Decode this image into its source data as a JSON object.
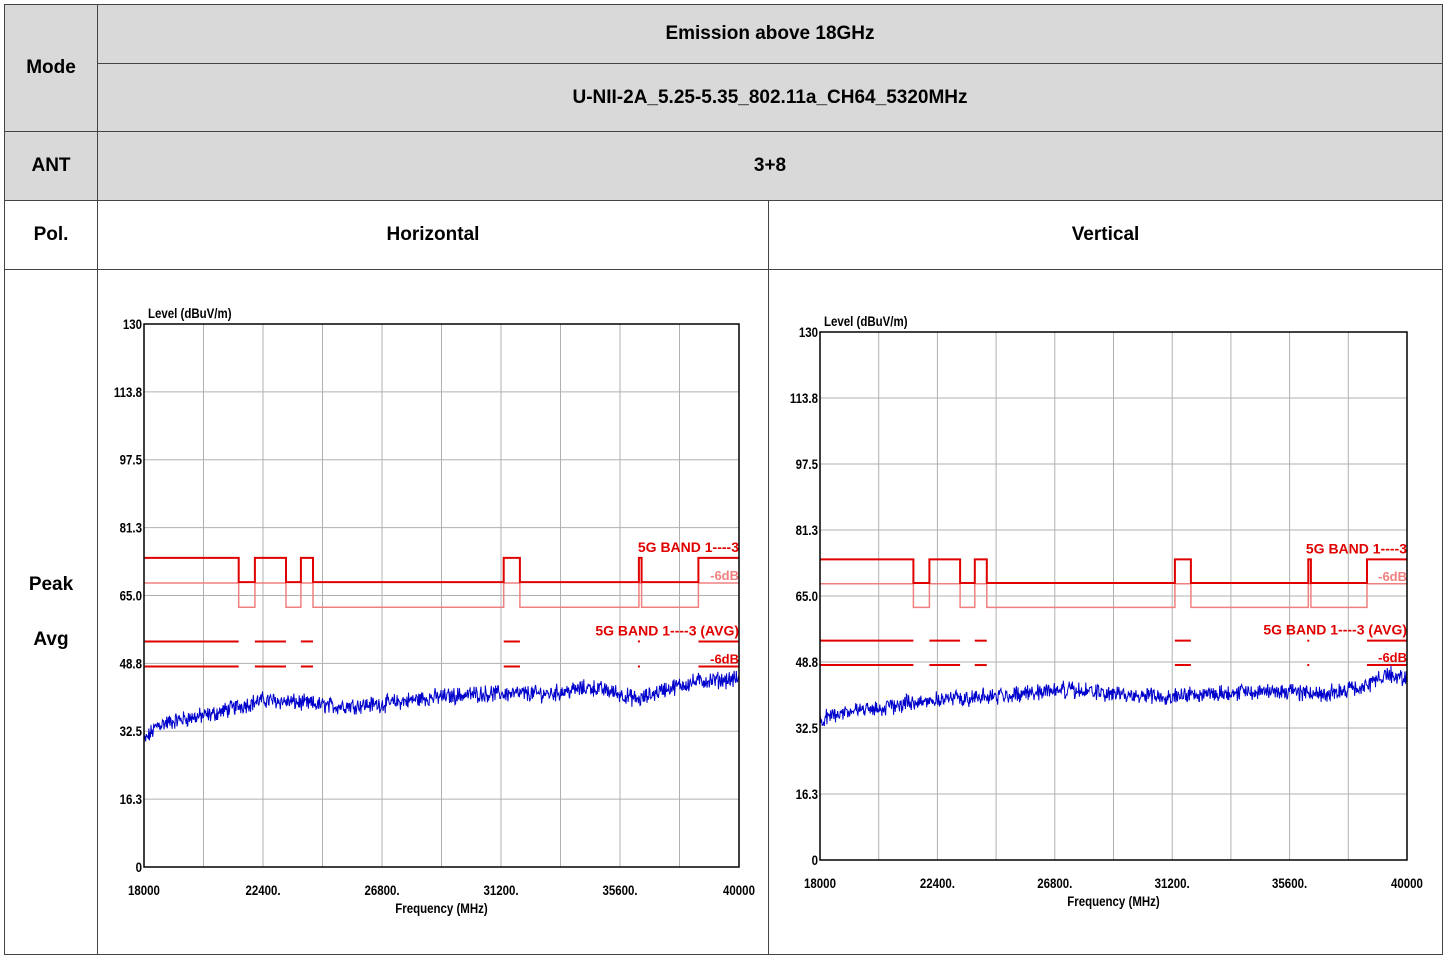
{
  "table": {
    "mode_label": "Mode",
    "emission_title": "Emission above 18GHz",
    "channel_title": "U-NII-2A_5.25-5.35_802.11a_CH64_5320MHz",
    "ant_label": "ANT",
    "ant_value": "3+8",
    "pol_label": "Pol.",
    "pol_h": "Horizontal",
    "pol_v": "Vertical",
    "row_label_peak": "Peak",
    "row_label_avg": "Avg"
  },
  "chart_data": [
    {
      "type": "line",
      "title": "",
      "ylabel": "Level (dBuV/m)",
      "xlabel": "Frequency (MHz)",
      "xlim": [
        18000,
        40000
      ],
      "ylim": [
        0,
        130
      ],
      "x_ticks": [
        "18000",
        "22400.",
        "26800.",
        "31200.",
        "35600.",
        "40000"
      ],
      "y_ticks": [
        "130",
        "113.8",
        "97.5",
        "81.3",
        "65.0",
        "48.8",
        "32.5",
        "16.3",
        "0"
      ],
      "grid": true,
      "limit_labels": [
        "5G BAND 1----3",
        "-6dB",
        "5G BAND 1----3 (AVG)",
        "-6dB"
      ],
      "colors": {
        "trace": "#0000cc",
        "limit": "#e00000",
        "limit_minus6": "#f08080"
      },
      "limit_peak_segments": [
        {
          "x": [
            18000,
            21500
          ],
          "y": 74
        },
        {
          "x": [
            21500,
            22100
          ],
          "y": 68.2
        },
        {
          "x": [
            22100,
            23250
          ],
          "y": 74
        },
        {
          "x": [
            23250,
            23800
          ],
          "y": 68.2
        },
        {
          "x": [
            23800,
            24250
          ],
          "y": 74
        },
        {
          "x": [
            24250,
            31300
          ],
          "y": 68.2
        },
        {
          "x": [
            31300,
            31900
          ],
          "y": 74
        },
        {
          "x": [
            31900,
            36300
          ],
          "y": 68.2
        },
        {
          "x": [
            36300,
            36400
          ],
          "y": 74
        },
        {
          "x": [
            36400,
            38500
          ],
          "y": 68.2
        },
        {
          "x": [
            38500,
            40000
          ],
          "y": 74
        }
      ],
      "limit_avg_segments": [
        {
          "x": [
            18000,
            21500
          ],
          "y": 54
        },
        {
          "x": [
            22100,
            23250
          ],
          "y": 54
        },
        {
          "x": [
            23800,
            24250
          ],
          "y": 54
        },
        {
          "x": [
            31300,
            31900
          ],
          "y": 54
        },
        {
          "x": [
            38500,
            40000
          ],
          "y": 54
        }
      ],
      "trace": {
        "x": [
          18000,
          18500,
          19500,
          20500,
          21500,
          22400,
          23500,
          25000,
          26800,
          28500,
          30500,
          31200,
          33000,
          34500,
          35300,
          36300,
          37200,
          38500,
          40000
        ],
        "y": [
          30,
          34,
          35.5,
          36.5,
          38.5,
          40,
          39.5,
          38.5,
          39,
          40.5,
          41.5,
          41.5,
          41.5,
          43,
          42,
          40,
          42.5,
          44.5,
          45
        ]
      }
    },
    {
      "type": "line",
      "title": "",
      "ylabel": "Level (dBuV/m)",
      "xlabel": "Frequency (MHz)",
      "xlim": [
        18000,
        40000
      ],
      "ylim": [
        0,
        130
      ],
      "x_ticks": [
        "18000",
        "22400.",
        "26800.",
        "31200.",
        "35600.",
        "40000"
      ],
      "y_ticks": [
        "130",
        "113.8",
        "97.5",
        "81.3",
        "65.0",
        "48.8",
        "32.5",
        "16.3",
        "0"
      ],
      "grid": true,
      "limit_labels": [
        "5G BAND 1----3",
        "-6dB",
        "5G BAND 1----3 (AVG)",
        "-6dB"
      ],
      "colors": {
        "trace": "#0000cc",
        "limit": "#e00000",
        "limit_minus6": "#f08080"
      },
      "limit_peak_segments": [
        {
          "x": [
            18000,
            21500
          ],
          "y": 74
        },
        {
          "x": [
            21500,
            22100
          ],
          "y": 68.2
        },
        {
          "x": [
            22100,
            23250
          ],
          "y": 74
        },
        {
          "x": [
            23250,
            23800
          ],
          "y": 68.2
        },
        {
          "x": [
            23800,
            24250
          ],
          "y": 74
        },
        {
          "x": [
            24250,
            31300
          ],
          "y": 68.2
        },
        {
          "x": [
            31300,
            31900
          ],
          "y": 74
        },
        {
          "x": [
            31900,
            36300
          ],
          "y": 68.2
        },
        {
          "x": [
            36300,
            36400
          ],
          "y": 74
        },
        {
          "x": [
            36400,
            38500
          ],
          "y": 68.2
        },
        {
          "x": [
            38500,
            40000
          ],
          "y": 74
        }
      ],
      "limit_avg_segments": [
        {
          "x": [
            18000,
            21500
          ],
          "y": 54
        },
        {
          "x": [
            22100,
            23250
          ],
          "y": 54
        },
        {
          "x": [
            23800,
            24250
          ],
          "y": 54
        },
        {
          "x": [
            31300,
            31900
          ],
          "y": 54
        },
        {
          "x": [
            38500,
            40000
          ],
          "y": 54
        }
      ],
      "trace": {
        "x": [
          18000,
          18500,
          19500,
          20500,
          21500,
          22400,
          23500,
          25000,
          26800,
          28000,
          29500,
          31200,
          32500,
          34000,
          35600,
          37000,
          38500,
          39200,
          40000
        ],
        "y": [
          34,
          36,
          37,
          37.5,
          39,
          39.5,
          40,
          40.5,
          42,
          41.5,
          40.5,
          40.5,
          41,
          41.5,
          41.5,
          41,
          42.5,
          46,
          44.5
        ]
      }
    }
  ]
}
